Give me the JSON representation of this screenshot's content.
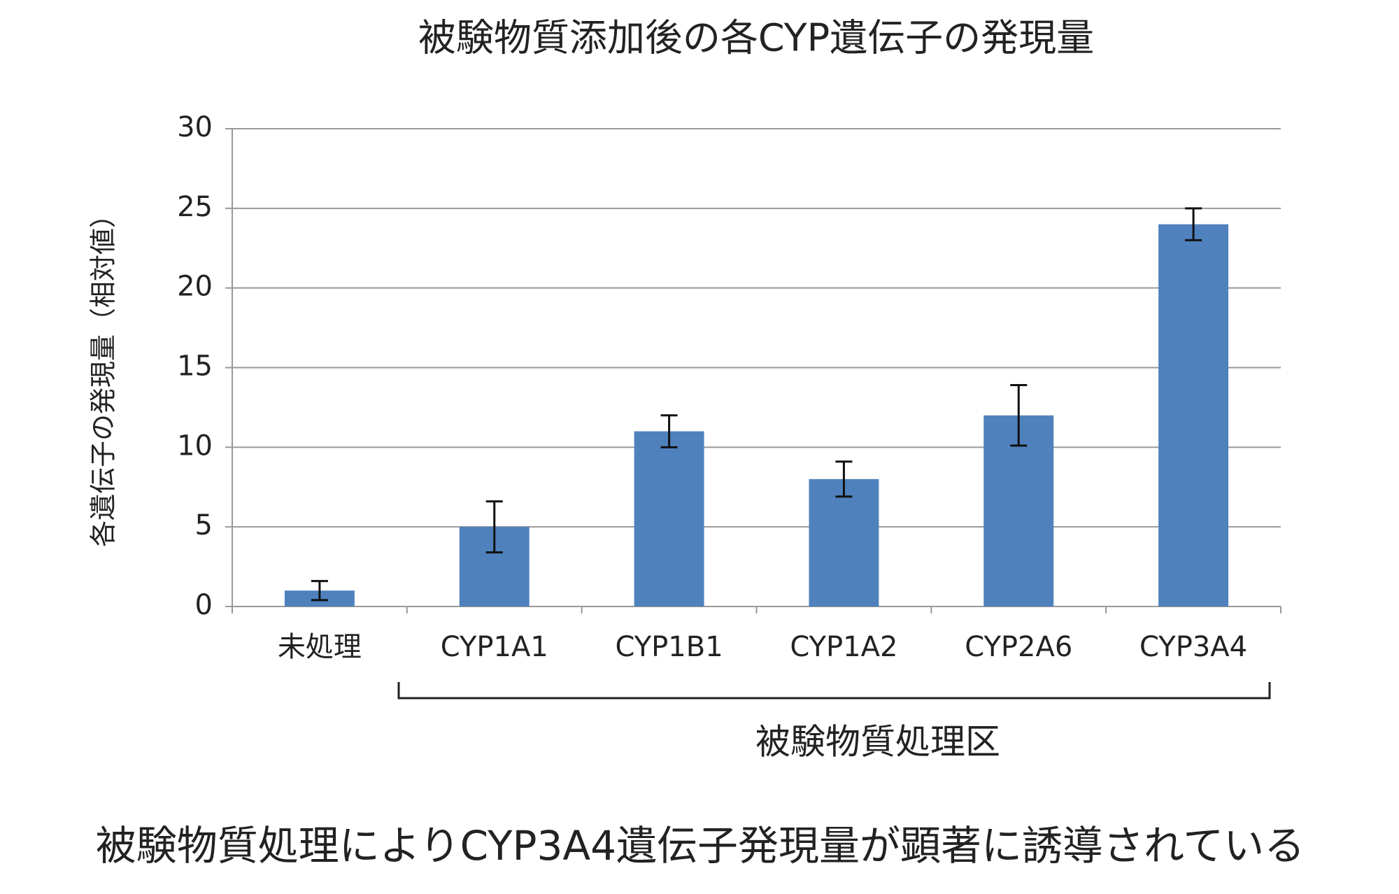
{
  "chart_data": {
    "type": "bar",
    "title": "被験物質添加後の各CYP遺伝子の発現量",
    "y_label": "各遺伝子の発現量（相対値）",
    "categories": [
      "未処理",
      "CYP1A1",
      "CYP1B1",
      "CYP1A2",
      "CYP2A6",
      "CYP3A4"
    ],
    "values": [
      1,
      5,
      11,
      8,
      12,
      24
    ],
    "errors": [
      0.6,
      1.6,
      1,
      1.1,
      1.9,
      1
    ],
    "color": "#4f81bd",
    "ylim": [
      0,
      30
    ],
    "yticks": [
      0,
      5,
      10,
      15,
      20,
      25,
      30
    ],
    "grid": true,
    "group_label": "被験物質処理区",
    "caption": "被験物質処理によりCYP3A4遺伝子発現量が顕著に誘導されている"
  }
}
